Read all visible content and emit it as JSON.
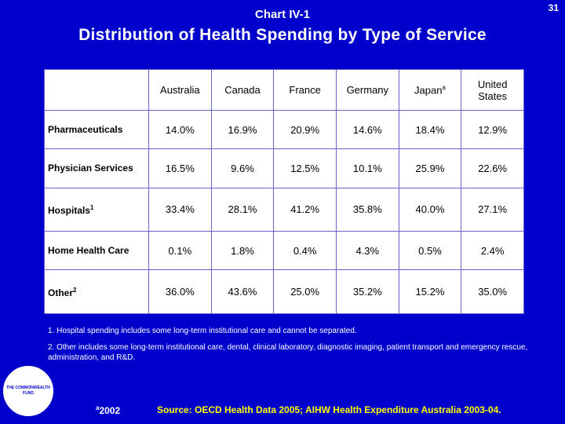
{
  "page_number": "31",
  "chart_label": "Chart IV-1",
  "title": "Distribution of Health Spending by Type of Service",
  "table": {
    "columns": [
      "Australia",
      "Canada",
      "France",
      "Germany",
      "Japan",
      "United States"
    ],
    "japan_marker": "a",
    "rows": [
      {
        "label": "Pharmaceuticals",
        "sup": "",
        "values": [
          "14.0%",
          "16.9%",
          "20.9%",
          "14.6%",
          "18.4%",
          "12.9%"
        ]
      },
      {
        "label": "Physician Services",
        "sup": "",
        "values": [
          "16.5%",
          "9.6%",
          "12.5%",
          "10.1%",
          "25.9%",
          "22.6%"
        ]
      },
      {
        "label": "Hospitals",
        "sup": "1",
        "values": [
          "33.4%",
          "28.1%",
          "41.2%",
          "35.8%",
          "40.0%",
          "27.1%"
        ]
      },
      {
        "label": "Home Health Care",
        "sup": "",
        "values": [
          "0.1%",
          "1.8%",
          "0.4%",
          "4.3%",
          "0.5%",
          "2.4%"
        ]
      },
      {
        "label": "Other",
        "sup": "2",
        "values": [
          "36.0%",
          "43.6%",
          "25.0%",
          "35.2%",
          "15.2%",
          "35.0%"
        ]
      }
    ]
  },
  "notes": [
    "1. Hospital spending includes some long-term institutional care and cannot be separated.",
    "2. Other includes some long-term institutional care, dental, clinical laboratory, diagnostic imaging, patient transport and emergency rescue, administration, and R&D."
  ],
  "logo_text": "THE COMMONWEALTH FUND",
  "as_of_marker": "a",
  "as_of_year": "2002",
  "source": "Source: OECD Health Data 2005; AIHW Health Expenditure Australia 2003-04."
}
